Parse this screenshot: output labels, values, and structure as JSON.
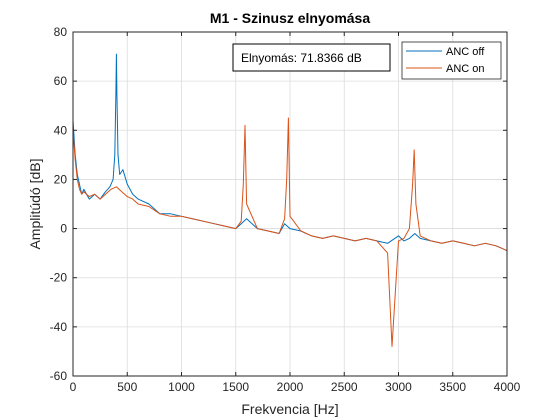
{
  "chart_data": {
    "type": "line",
    "title": "M1 - Szinusz elnyomása",
    "xlabel": "Frekvencia [Hz]",
    "ylabel": "Amplitúdó [dB]",
    "xlim": [
      0,
      4000
    ],
    "ylim": [
      -60,
      80
    ],
    "xticks": [
      0,
      500,
      1000,
      1500,
      2000,
      2500,
      3000,
      3500,
      4000
    ],
    "yticks": [
      -60,
      -40,
      -20,
      0,
      20,
      40,
      60,
      80
    ],
    "xtick_labels": [
      "0",
      "500",
      "1000",
      "1500",
      "2000",
      "2500",
      "3000",
      "3500",
      "4000"
    ],
    "ytick_labels": [
      "-60",
      "-40",
      "-20",
      "0",
      "20",
      "40",
      "60",
      "80"
    ],
    "grid": true,
    "legend_position": "top-right",
    "annotation": "Elnyomás: 71.8366 dB",
    "series": [
      {
        "name": "ANC off",
        "color": "#0072BD",
        "x": [
          0,
          20,
          40,
          60,
          80,
          100,
          150,
          200,
          250,
          300,
          340,
          370,
          385,
          395,
          400,
          405,
          415,
          430,
          460,
          500,
          550,
          600,
          700,
          800,
          900,
          1000,
          1100,
          1200,
          1300,
          1400,
          1500,
          1550,
          1600,
          1700,
          1800,
          1900,
          1950,
          2000,
          2100,
          2200,
          2300,
          2400,
          2500,
          2600,
          2700,
          2800,
          2900,
          3000,
          3050,
          3100,
          3150,
          3200,
          3300,
          3400,
          3500,
          3600,
          3700,
          3800,
          3900,
          3950,
          4000
        ],
        "y": [
          44,
          30,
          22,
          18,
          14,
          16,
          12,
          14,
          12,
          15,
          17,
          20,
          30,
          55,
          71,
          55,
          30,
          22,
          24,
          18,
          14,
          12,
          10,
          6,
          6,
          5,
          4,
          3,
          2,
          1,
          0,
          2,
          4,
          0,
          -1,
          -2,
          2,
          0,
          -1,
          -3,
          -4,
          -3,
          -4,
          -5,
          -4,
          -5,
          -6,
          -3,
          -5,
          -4,
          -2,
          -4,
          -5,
          -6,
          -5,
          -6,
          -7,
          -6,
          -7,
          -8,
          -9
        ]
      },
      {
        "name": "ANC on",
        "color": "#D95319",
        "x": [
          0,
          20,
          40,
          60,
          80,
          100,
          150,
          200,
          250,
          300,
          350,
          400,
          450,
          500,
          550,
          600,
          700,
          800,
          900,
          1000,
          1100,
          1200,
          1300,
          1400,
          1500,
          1550,
          1570,
          1585,
          1600,
          1700,
          1800,
          1900,
          1950,
          1970,
          1985,
          2000,
          2100,
          2200,
          2300,
          2400,
          2500,
          2600,
          2700,
          2800,
          2900,
          2940,
          3000,
          3050,
          3100,
          3130,
          3145,
          3160,
          3200,
          3300,
          3400,
          3500,
          3600,
          3700,
          3800,
          3900,
          3950,
          4000
        ],
        "y": [
          40,
          28,
          20,
          16,
          14,
          15,
          13,
          14,
          12,
          14,
          16,
          17,
          15,
          13,
          12,
          10,
          9,
          6,
          5,
          5,
          4,
          3,
          2,
          1,
          0,
          3,
          18,
          42,
          10,
          0,
          -1,
          -2,
          4,
          20,
          45,
          5,
          -1,
          -3,
          -4,
          -3,
          -4,
          -5,
          -4,
          -5,
          -10,
          -48,
          -5,
          -4,
          0,
          18,
          32,
          10,
          -3,
          -5,
          -6,
          -5,
          -6,
          -7,
          -6,
          -7,
          -8,
          -9
        ]
      }
    ]
  }
}
